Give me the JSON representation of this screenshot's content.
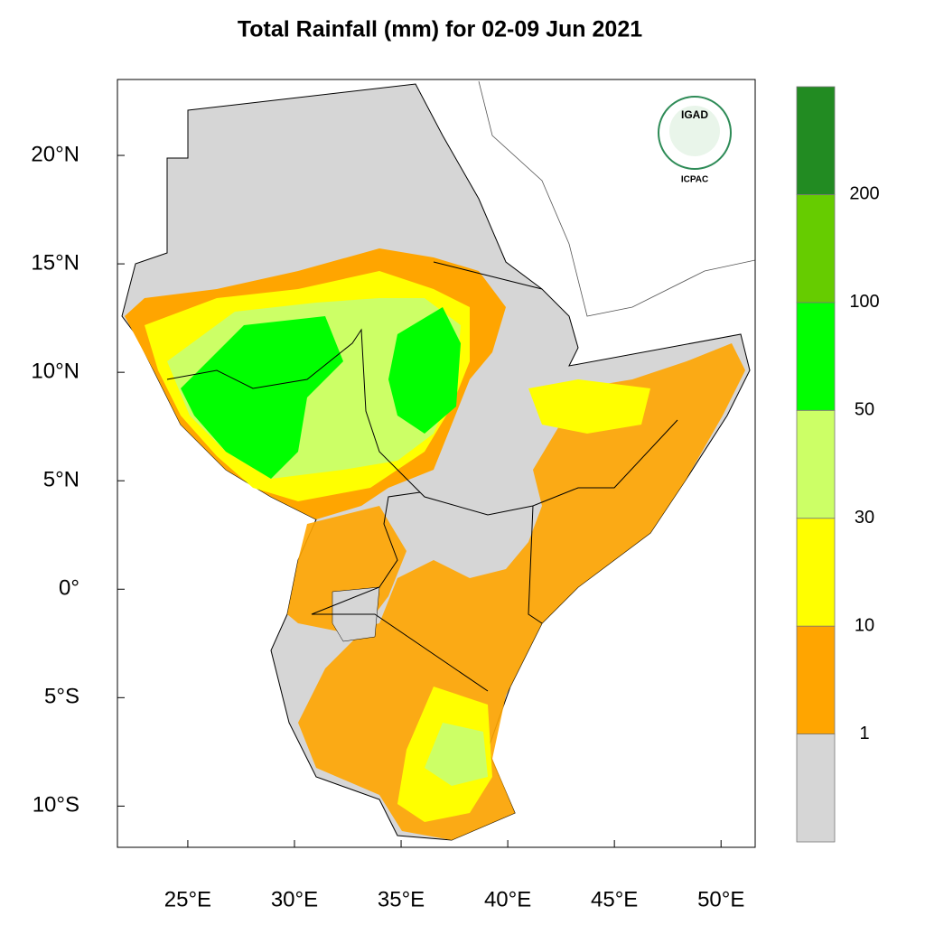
{
  "chart_data": {
    "type": "map",
    "title": "Total Rainfall (mm) for 02-09 Jun 2021",
    "xlim": [
      21.7,
      51.6
    ],
    "ylim": [
      -11.9,
      23.5
    ],
    "xticks": [
      {
        "value": 25,
        "label": "25°E"
      },
      {
        "value": 30,
        "label": "30°E"
      },
      {
        "value": 35,
        "label": "35°E"
      },
      {
        "value": 40,
        "label": "40°E"
      },
      {
        "value": 45,
        "label": "45°E"
      },
      {
        "value": 50,
        "label": "50°E"
      }
    ],
    "yticks": [
      {
        "value": -10,
        "label": "10°S"
      },
      {
        "value": -5,
        "label": "5°S"
      },
      {
        "value": 0,
        "label": "0°"
      },
      {
        "value": 5,
        "label": "5°N"
      },
      {
        "value": 10,
        "label": "10°N"
      },
      {
        "value": 15,
        "label": "15°N"
      },
      {
        "value": 20,
        "label": "20°N"
      }
    ],
    "colorbar": {
      "levels": [
        1,
        10,
        30,
        50,
        100,
        200
      ],
      "colors": [
        "#d6d6d6",
        "#ffa500",
        "#ffff00",
        "#ccff66",
        "#00ff00",
        "#66cc00",
        "#228b22"
      ]
    },
    "logo": {
      "name": "IGAD",
      "org": "ICPAC"
    }
  }
}
